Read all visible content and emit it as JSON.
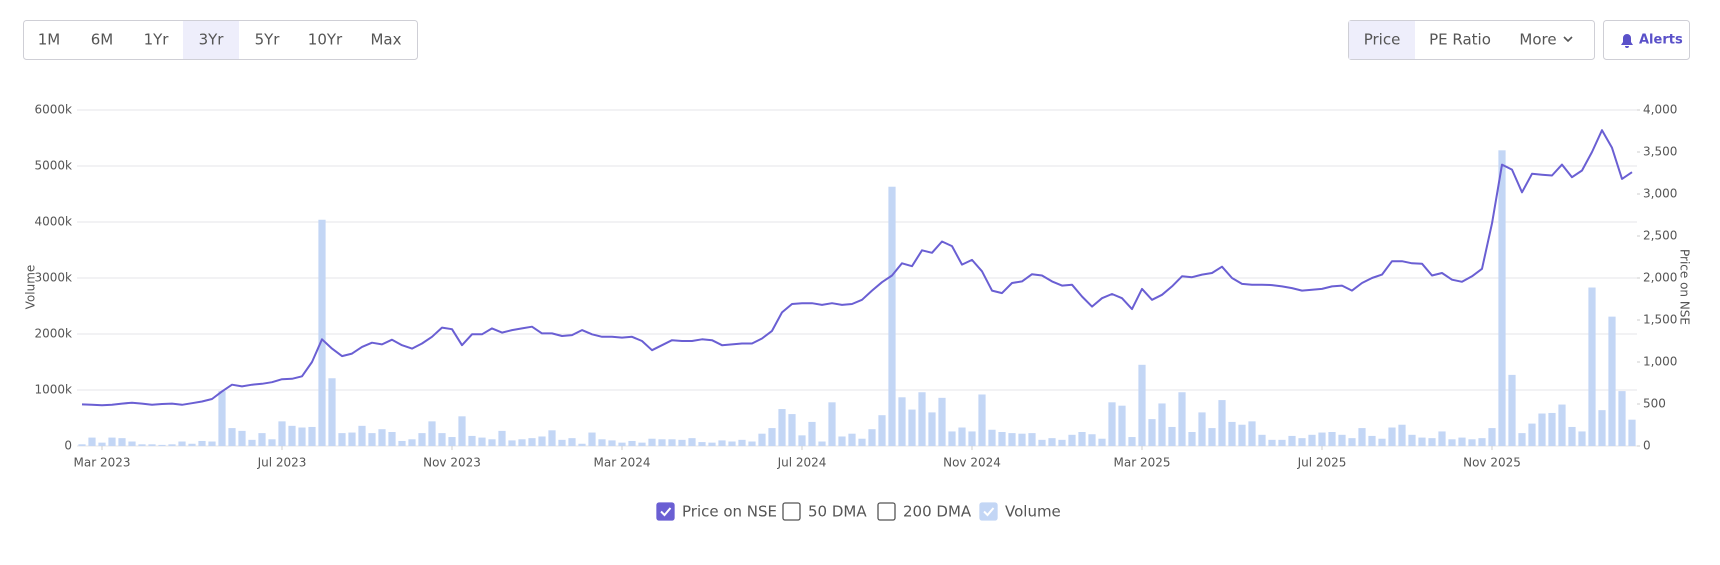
{
  "controls": {
    "range_buttons": [
      "1M",
      "6M",
      "1Yr",
      "3Yr",
      "5Yr",
      "10Yr",
      "Max"
    ],
    "view_buttons": [
      "Price",
      "PE Ratio",
      "More"
    ],
    "alerts": "Alerts"
  },
  "chart_data": {
    "type": "bar_line",
    "categories": [
      null,
      null,
      "Mar 2023",
      null,
      null,
      null,
      null,
      null,
      null,
      null,
      null,
      null,
      null,
      null,
      null,
      null,
      null,
      null,
      null,
      null,
      "Jul 2023",
      null,
      null,
      null,
      null,
      null,
      null,
      null,
      null,
      null,
      null,
      null,
      null,
      null,
      null,
      null,
      null,
      "Nov 2023",
      null,
      null,
      null,
      null,
      null,
      null,
      null,
      null,
      null,
      null,
      null,
      null,
      null,
      null,
      null,
      null,
      "Mar 2024",
      null,
      null,
      null,
      null,
      null,
      null,
      null,
      null,
      null,
      null,
      null,
      null,
      null,
      null,
      null,
      null,
      null,
      "Jul 2024",
      null,
      null,
      null,
      null,
      null,
      null,
      null,
      null,
      null,
      null,
      null,
      null,
      null,
      null,
      null,
      null,
      "Nov 2024",
      null,
      null,
      null,
      null,
      null,
      null,
      null,
      null,
      null,
      null,
      null,
      null,
      null,
      null,
      null,
      null,
      "Mar 2025",
      null,
      null,
      null,
      null,
      null,
      null,
      null,
      null,
      null,
      null,
      null,
      null,
      null,
      null,
      null,
      null,
      null,
      "Jul 2025",
      null,
      null,
      null,
      null,
      null,
      null,
      null,
      null,
      null,
      null,
      null,
      null,
      null,
      null,
      null,
      null,
      "Nov 2025",
      null,
      null,
      null,
      null,
      null,
      null,
      null,
      null,
      null,
      null,
      null,
      null,
      null,
      null
    ],
    "series": [
      {
        "name": "Price on NSE",
        "type": "line",
        "axis": "y2",
        "color": "#6a5fd3",
        "visible": true,
        "values": [
          495,
          490,
          485,
          490,
          505,
          515,
          505,
          490,
          500,
          505,
          490,
          510,
          530,
          560,
          650,
          730,
          710,
          730,
          740,
          760,
          795,
          800,
          830,
          1000,
          1270,
          1160,
          1070,
          1100,
          1180,
          1230,
          1210,
          1265,
          1200,
          1160,
          1220,
          1300,
          1410,
          1390,
          1200,
          1330,
          1330,
          1400,
          1350,
          1380,
          1400,
          1420,
          1340,
          1340,
          1310,
          1320,
          1380,
          1330,
          1300,
          1300,
          1290,
          1300,
          1250,
          1140,
          1200,
          1260,
          1250,
          1250,
          1270,
          1260,
          1200,
          1210,
          1220,
          1220,
          1280,
          1370,
          1590,
          1690,
          1700,
          1700,
          1680,
          1700,
          1680,
          1690,
          1740,
          1850,
          1950,
          2030,
          2175,
          2140,
          2330,
          2300,
          2435,
          2380,
          2160,
          2215,
          2080,
          1850,
          1820,
          1940,
          1960,
          2045,
          2030,
          1960,
          1910,
          1920,
          1780,
          1660,
          1760,
          1810,
          1760,
          1630,
          1870,
          1740,
          1800,
          1900,
          2020,
          2010,
          2040,
          2060,
          2135,
          2000,
          1930,
          1920,
          1920,
          1915,
          1900,
          1880,
          1850,
          1860,
          1870,
          1900,
          1910,
          1850,
          1940,
          2000,
          2040,
          2200,
          2200,
          2175,
          2170,
          2030,
          2060,
          1980,
          1955,
          2020,
          2110,
          2650,
          3350,
          3290,
          3020,
          3240,
          3230,
          3220,
          3350,
          3200,
          3280,
          3500,
          3760,
          3550,
          3180,
          3260
        ]
      },
      {
        "name": "Volume",
        "type": "bar",
        "axis": "y",
        "color": "#c3d6f5",
        "visible": true,
        "values": [
          30000,
          150000,
          60000,
          150000,
          140000,
          80000,
          30000,
          30000,
          20000,
          30000,
          80000,
          40000,
          90000,
          80000,
          980000,
          320000,
          270000,
          110000,
          230000,
          120000,
          440000,
          360000,
          330000,
          340000,
          4040000,
          1210000,
          230000,
          240000,
          360000,
          230000,
          300000,
          250000,
          90000,
          120000,
          230000,
          440000,
          230000,
          160000,
          530000,
          180000,
          150000,
          120000,
          270000,
          100000,
          120000,
          140000,
          170000,
          280000,
          110000,
          140000,
          40000,
          240000,
          120000,
          100000,
          60000,
          90000,
          60000,
          130000,
          120000,
          120000,
          110000,
          140000,
          70000,
          60000,
          100000,
          80000,
          110000,
          80000,
          220000,
          320000,
          660000,
          570000,
          190000,
          430000,
          80000,
          780000,
          170000,
          220000,
          130000,
          300000,
          550000,
          4630000,
          870000,
          650000,
          960000,
          600000,
          860000,
          260000,
          330000,
          260000,
          920000,
          290000,
          250000,
          230000,
          220000,
          230000,
          110000,
          140000,
          110000,
          200000,
          250000,
          210000,
          130000,
          780000,
          720000,
          160000,
          1450000,
          480000,
          760000,
          340000,
          960000,
          250000,
          600000,
          320000,
          820000,
          430000,
          380000,
          440000,
          200000,
          110000,
          110000,
          180000,
          140000,
          200000,
          240000,
          250000,
          200000,
          140000,
          320000,
          180000,
          130000,
          330000,
          380000,
          200000,
          150000,
          140000,
          260000,
          120000,
          150000,
          120000,
          140000,
          320000,
          5280000,
          1270000,
          230000,
          400000,
          580000,
          590000,
          740000,
          340000,
          260000,
          2830000,
          640000,
          2310000,
          980000,
          470000
        ]
      }
    ],
    "toggles": [
      {
        "name": "50 DMA",
        "visible": false
      },
      {
        "name": "200 DMA",
        "visible": false
      }
    ],
    "ylabel": "Volume",
    "y2label": "Price on NSE",
    "ylim": [
      0,
      6000000
    ],
    "yticks": [
      0,
      {
        "value": 1000000,
        "label": "1000k"
      },
      {
        "value": 2000000,
        "label": "2000k"
      },
      {
        "value": 3000000,
        "label": "3000k"
      },
      {
        "value": 4000000,
        "label": "4000k"
      },
      {
        "value": 5000000,
        "label": "5000k"
      },
      {
        "value": 6000000,
        "label": "6000k"
      }
    ],
    "y2lim": [
      0,
      4000
    ],
    "y2ticks": [
      0,
      500,
      {
        "value": 1000,
        "label": "1,000"
      },
      {
        "value": 1500,
        "label": "1,500"
      },
      {
        "value": 2000,
        "label": "2,000"
      },
      {
        "value": 2500,
        "label": "2,500"
      },
      {
        "value": 3000,
        "label": "3,000"
      },
      {
        "value": 3500,
        "label": "3,500"
      },
      {
        "value": 4000,
        "label": "4,000"
      }
    ],
    "grid": true
  }
}
